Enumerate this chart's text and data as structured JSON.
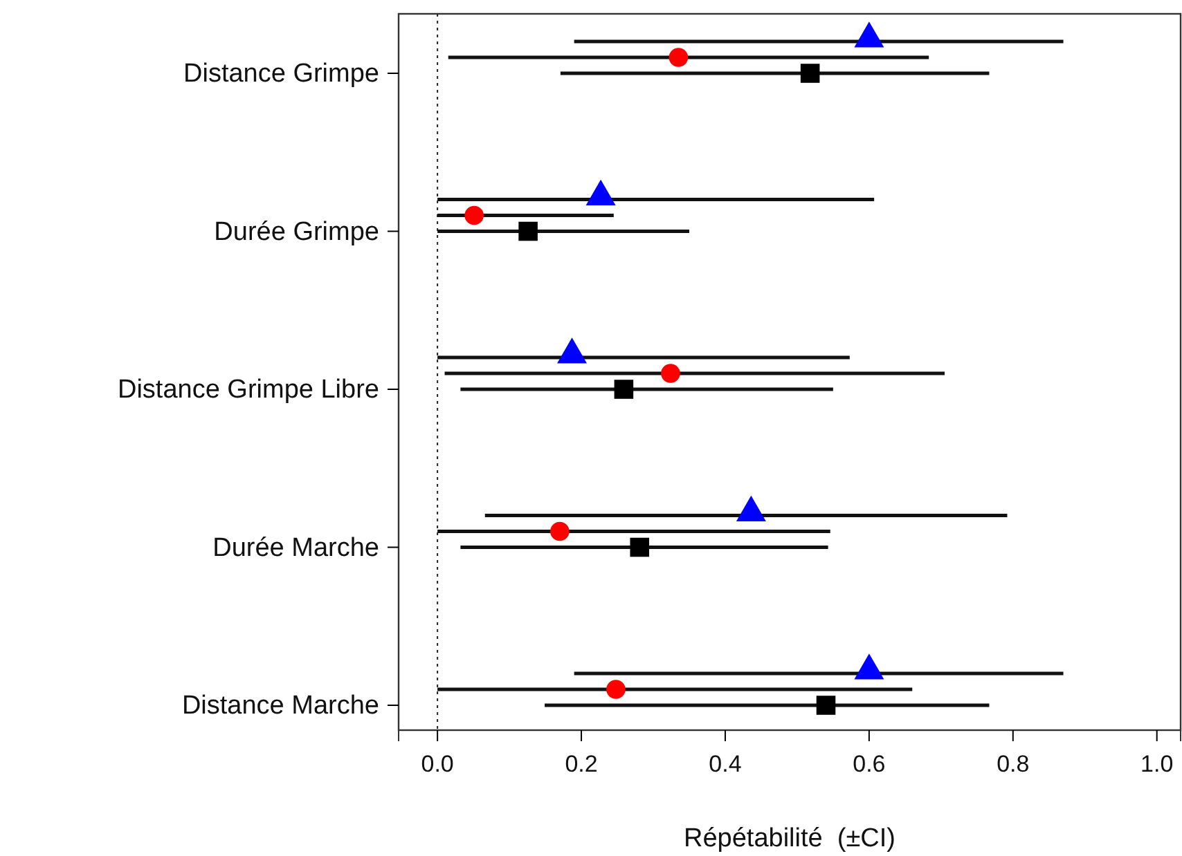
{
  "chart_data": {
    "type": "scatter",
    "orientation": "horizontal",
    "xlabel": "Répétabilité  (±CI)",
    "categories": [
      "Distance Grimpe",
      "Durée Grimpe",
      "Distance Grimpe Libre",
      "Durée Marche",
      "Distance Marche"
    ],
    "series": [
      {
        "color": "#0000ff",
        "marker": "triangle",
        "values": [
          0.6,
          0.227,
          0.187,
          0.436,
          0.6
        ],
        "errors": [
          [
            0.19,
            0.87
          ],
          [
            0.0,
            0.607
          ],
          [
            0.0,
            0.573
          ],
          [
            0.066,
            0.792
          ],
          [
            0.19,
            0.87
          ]
        ]
      },
      {
        "color": "#ff0000",
        "marker": "circle",
        "values": [
          0.335,
          0.051,
          0.324,
          0.17,
          0.248
        ],
        "errors": [
          [
            0.015,
            0.683
          ],
          [
            0.0,
            0.245
          ],
          [
            0.01,
            0.705
          ],
          [
            0.0,
            0.546
          ],
          [
            0.0,
            0.66
          ]
        ]
      },
      {
        "color": "#000000",
        "marker": "square",
        "values": [
          0.518,
          0.126,
          0.259,
          0.281,
          0.54
        ],
        "errors": [
          [
            0.171,
            0.767
          ],
          [
            0.0,
            0.35
          ],
          [
            0.032,
            0.55
          ],
          [
            0.032,
            0.543
          ],
          [
            0.149,
            0.767
          ]
        ]
      }
    ],
    "xlim": [
      -0.054,
      1.033
    ],
    "xticks": [
      {
        "value": 0,
        "label": "0.0"
      },
      {
        "value": 0.2,
        "label": "0.2"
      },
      {
        "value": 0.4,
        "label": "0.4"
      },
      {
        "value": 0.6,
        "label": "0.6"
      },
      {
        "value": 0.8,
        "label": "0.8"
      },
      {
        "value": 1,
        "label": "1.0"
      }
    ],
    "ref_lines": [
      {
        "axis": "x",
        "value": 0,
        "line_style": "dotted"
      }
    ]
  }
}
